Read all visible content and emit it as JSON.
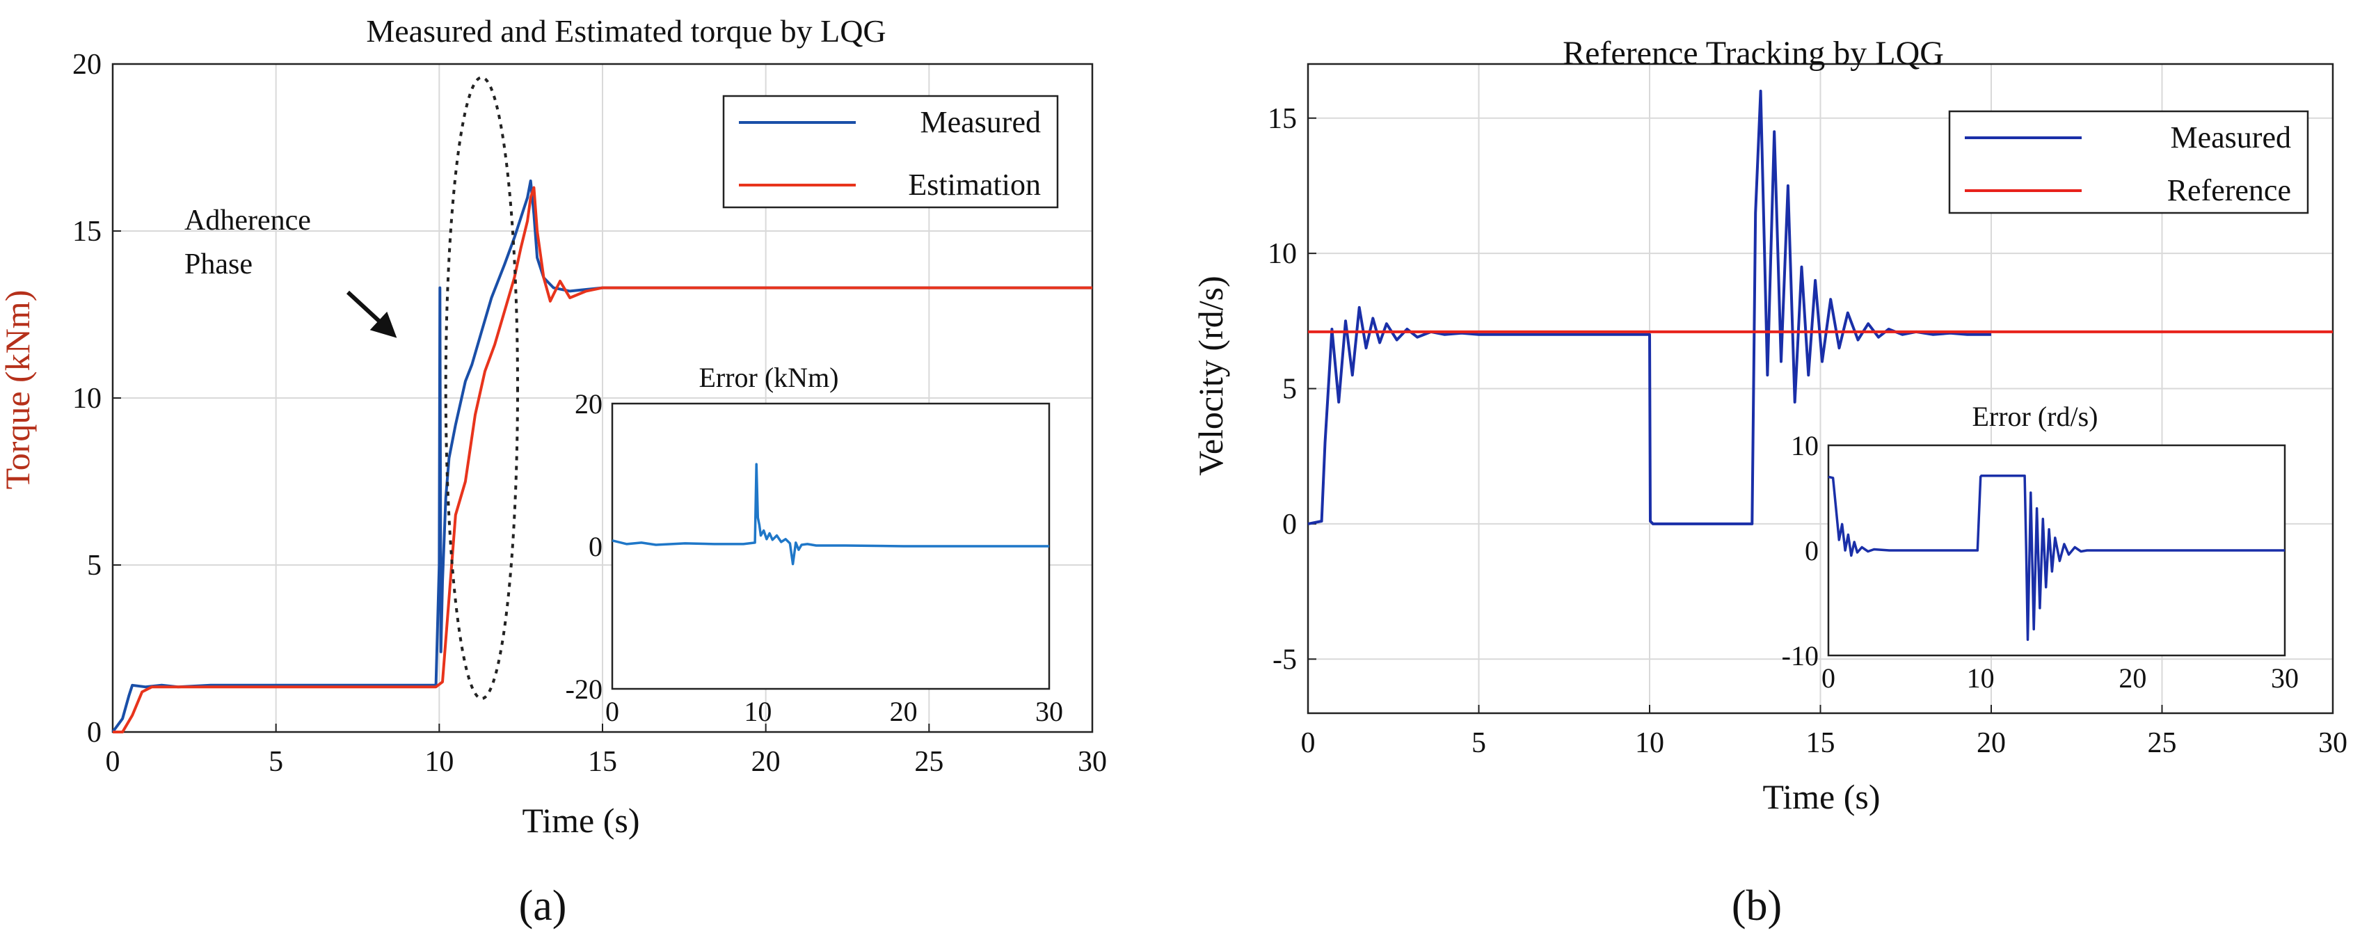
{
  "chart_data": [
    {
      "id": "a",
      "type": "line",
      "panel_label": "(a)",
      "title": "Measured and Estimated torque by LQG",
      "xlabel": "Time (s)",
      "ylabel": "Torque (kNm)",
      "xlim": [
        0,
        30
      ],
      "ylim": [
        0,
        20
      ],
      "xticks": [
        0,
        5,
        10,
        15,
        20,
        25,
        30
      ],
      "yticks": [
        0,
        5,
        10,
        15,
        20
      ],
      "grid": true,
      "legend_position": "top-right",
      "annotation": {
        "text_lines": [
          "Adherence",
          "Phase"
        ],
        "arrow_to": [
          8.7,
          11.8
        ],
        "ellipse_center": [
          11.3,
          10.3
        ],
        "ellipse_radius": [
          1.1,
          9.3
        ]
      },
      "series": [
        {
          "name": "Measured",
          "color": "#1a4fa8",
          "x": [
            0,
            0.3,
            0.5,
            0.6,
            1,
            1.5,
            2,
            3,
            4,
            5,
            6,
            7,
            8,
            9,
            9.9,
            10.0,
            10.02,
            10.05,
            10.1,
            10.2,
            10.3,
            10.5,
            10.8,
            11,
            11.3,
            11.6,
            12,
            12.3,
            12.5,
            12.7,
            12.8,
            12.9,
            13.0,
            13.2,
            13.5,
            14,
            15,
            16,
            18,
            20,
            25,
            30
          ],
          "y": [
            0,
            0.4,
            1.1,
            1.4,
            1.35,
            1.4,
            1.35,
            1.4,
            1.4,
            1.4,
            1.4,
            1.4,
            1.4,
            1.4,
            1.4,
            5.0,
            13.3,
            2.4,
            4.5,
            7.0,
            8.2,
            9.2,
            10.5,
            11.0,
            12.0,
            13.0,
            14.0,
            14.8,
            15.4,
            16.0,
            16.5,
            15.5,
            14.2,
            13.6,
            13.3,
            13.2,
            13.3,
            13.3,
            13.3,
            13.3,
            13.3,
            13.3
          ]
        },
        {
          "name": "Estimation",
          "color": "#e8341c",
          "x": [
            0,
            0.3,
            0.6,
            0.9,
            1.2,
            2,
            3,
            4,
            5,
            6,
            7,
            8,
            9,
            9.9,
            10.1,
            10.3,
            10.5,
            10.8,
            11.1,
            11.4,
            11.7,
            12.0,
            12.3,
            12.5,
            12.7,
            12.8,
            12.9,
            13.0,
            13.2,
            13.4,
            13.7,
            14,
            14.5,
            15,
            16,
            18,
            20,
            25,
            30
          ],
          "y": [
            0,
            0,
            0.5,
            1.2,
            1.35,
            1.35,
            1.35,
            1.35,
            1.35,
            1.35,
            1.35,
            1.35,
            1.35,
            1.35,
            1.5,
            4.0,
            6.5,
            7.5,
            9.5,
            10.8,
            11.6,
            12.6,
            13.6,
            14.5,
            15.3,
            16.0,
            16.3,
            15.0,
            13.6,
            12.9,
            13.5,
            13.0,
            13.2,
            13.3,
            13.3,
            13.3,
            13.3,
            13.3,
            13.3
          ]
        }
      ],
      "inset": {
        "title": "Error (kNm)",
        "xlim": [
          0,
          30
        ],
        "ylim": [
          -20,
          20
        ],
        "xticks": [
          0,
          10,
          20,
          30
        ],
        "yticks": [
          -20,
          0,
          20
        ],
        "grid": false,
        "series": [
          {
            "name": "Error",
            "color": "#1f77c8",
            "x": [
              0,
              1,
              2,
              3,
              5,
              7,
              9,
              9.8,
              9.9,
              10.0,
              10.1,
              10.2,
              10.4,
              10.6,
              10.8,
              11,
              11.3,
              11.6,
              11.9,
              12.2,
              12.4,
              12.6,
              12.8,
              13,
              13.4,
              14,
              16,
              20,
              25,
              30
            ],
            "y": [
              0.8,
              0.3,
              0.5,
              0.2,
              0.4,
              0.3,
              0.3,
              0.5,
              11.5,
              4.0,
              3.0,
              1.5,
              2.2,
              1.0,
              1.8,
              0.9,
              1.5,
              0.6,
              1.0,
              0.4,
              -2.5,
              0.5,
              -0.5,
              0.2,
              0.3,
              0.1,
              0.1,
              0.0,
              0.0,
              0.0
            ]
          }
        ]
      }
    },
    {
      "id": "b",
      "type": "line",
      "panel_label": "(b)",
      "title": "Reference Tracking by LQG",
      "xlabel": "Time (s)",
      "ylabel": "Velocity (rd/s)",
      "xlim": [
        0,
        30
      ],
      "ylim": [
        -7,
        17
      ],
      "xticks": [
        0,
        5,
        10,
        15,
        20,
        25,
        30
      ],
      "yticks": [
        -5,
        0,
        5,
        10,
        15
      ],
      "grid": true,
      "legend_position": "top-right",
      "series": [
        {
          "name": "Measured",
          "color": "#1a2fa8",
          "x": [
            0,
            0.4,
            0.5,
            0.7,
            0.9,
            1.1,
            1.3,
            1.5,
            1.7,
            1.9,
            2.1,
            2.3,
            2.6,
            2.9,
            3.2,
            3.6,
            4.0,
            4.5,
            5.0,
            10.0,
            10.02,
            10.1,
            13.0,
            13.1,
            13.25,
            13.45,
            13.65,
            13.85,
            14.05,
            14.25,
            14.45,
            14.65,
            14.85,
            15.05,
            15.3,
            15.55,
            15.8,
            16.1,
            16.4,
            16.7,
            17.0,
            17.4,
            17.8,
            18.3,
            18.8,
            19.3,
            20.0
          ],
          "y": [
            0,
            0.1,
            3.0,
            7.2,
            4.5,
            7.5,
            5.5,
            8.0,
            6.5,
            7.6,
            6.7,
            7.4,
            6.8,
            7.2,
            6.9,
            7.1,
            7.0,
            7.05,
            7.0,
            7.0,
            0.1,
            0.0,
            0.0,
            11.5,
            16.0,
            5.5,
            14.5,
            6.0,
            12.5,
            4.5,
            9.5,
            5.5,
            9.0,
            6.0,
            8.3,
            6.5,
            7.8,
            6.8,
            7.4,
            6.9,
            7.2,
            7.0,
            7.1,
            7.0,
            7.05,
            7.0,
            7.0
          ]
        },
        {
          "name": "Reference",
          "color": "#e8221c",
          "x": [
            0,
            30
          ],
          "y": [
            7.1,
            7.1
          ]
        }
      ],
      "inset": {
        "title": "Error (rd/s)",
        "xlim": [
          0,
          30
        ],
        "ylim": [
          -10,
          10
        ],
        "xticks": [
          0,
          10,
          20,
          30
        ],
        "yticks": [
          -10,
          0,
          10
        ],
        "grid": false,
        "series": [
          {
            "name": "Error",
            "color": "#1a2fa8",
            "x": [
              0,
              0.3,
              0.5,
              0.7,
              0.9,
              1.1,
              1.3,
              1.5,
              1.7,
              1.9,
              2.2,
              2.6,
              3,
              4,
              5,
              9.8,
              10.0,
              10.05,
              12.9,
              13.0,
              13.1,
              13.3,
              13.5,
              13.7,
              13.9,
              14.1,
              14.3,
              14.5,
              14.7,
              14.9,
              15.2,
              15.5,
              15.8,
              16.2,
              16.6,
              17,
              18,
              20,
              25,
              30
            ],
            "y": [
              7.0,
              6.9,
              4.0,
              1.0,
              2.5,
              0.0,
              1.5,
              -0.5,
              0.8,
              -0.2,
              0.3,
              -0.1,
              0.1,
              0,
              0,
              0,
              7.0,
              7.1,
              7.1,
              0.0,
              -8.5,
              5.5,
              -7.5,
              4.0,
              -5.5,
              3.0,
              -3.5,
              2.0,
              -2.0,
              1.2,
              -1.0,
              0.6,
              -0.4,
              0.3,
              -0.1,
              0.0,
              0,
              0,
              0,
              0
            ]
          }
        ]
      }
    }
  ]
}
